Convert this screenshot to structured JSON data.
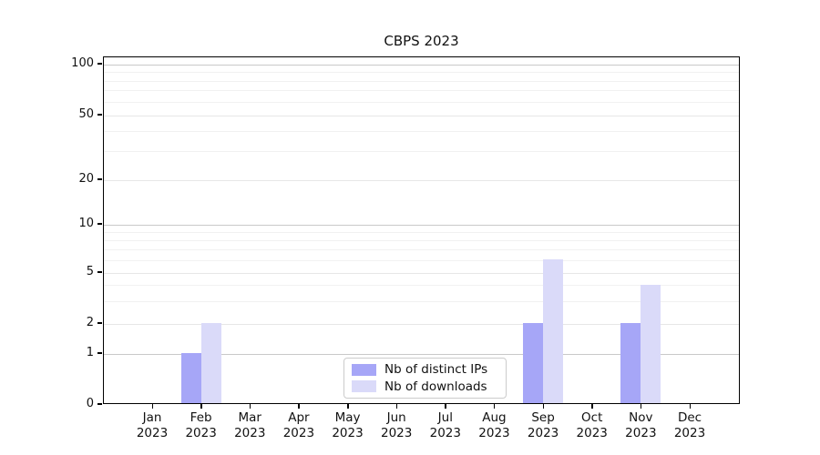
{
  "chart_data": {
    "type": "bar",
    "title": "CBPS 2023",
    "categories": [
      "Jan 2023",
      "Feb 2023",
      "Mar 2023",
      "Apr 2023",
      "May 2023",
      "Jun 2023",
      "Jul 2023",
      "Aug 2023",
      "Sep 2023",
      "Oct 2023",
      "Nov 2023",
      "Dec 2023"
    ],
    "month_labels": [
      "Jan",
      "Feb",
      "Mar",
      "Apr",
      "May",
      "Jun",
      "Jul",
      "Aug",
      "Sep",
      "Oct",
      "Nov",
      "Dec"
    ],
    "year_label": "2023",
    "series": [
      {
        "name": "Nb of distinct IPs",
        "color": "#a6a6f7",
        "values": [
          0,
          1,
          0,
          0,
          0,
          0,
          0,
          0,
          2,
          0,
          2,
          0
        ]
      },
      {
        "name": "Nb of downloads",
        "color": "#dadaf9",
        "values": [
          0,
          2,
          0,
          0,
          0,
          0,
          0,
          0,
          6,
          0,
          4,
          0
        ]
      }
    ],
    "xlabel": "",
    "ylabel": "",
    "yscale": "symlog",
    "y_ticks": [
      0,
      1,
      2,
      5,
      10,
      20,
      50,
      100
    ],
    "y_minor_ticks": [
      3,
      4,
      6,
      7,
      8,
      9,
      30,
      40,
      60,
      70,
      80,
      90
    ],
    "ylim": [
      0,
      110
    ],
    "grid": "horizontal",
    "legend_position": "lower center",
    "colors": {
      "major_grid": "#c9c9c9",
      "tick_grid": "#e7e7e7",
      "minor_grid": "#f1f1f1",
      "spine": "#000000",
      "legend_border": "#cccccc"
    }
  }
}
